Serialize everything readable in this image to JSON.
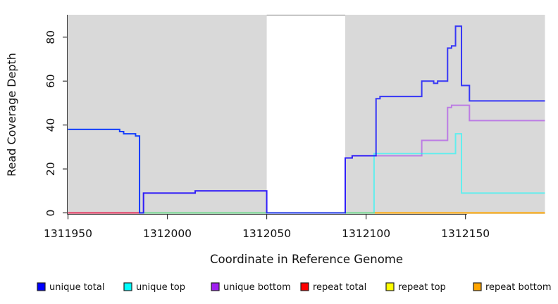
{
  "figure": {
    "background": "#ffffff",
    "panel_background": "#d9d9d9",
    "gap_border_color": "#999999",
    "axis_color": "#333333",
    "tick_label_color": "#111111"
  },
  "chart_data": {
    "type": "line",
    "subtype": "step",
    "title": "",
    "xlabel": "Coordinate in Reference Genome",
    "ylabel": "Read Coverage Depth",
    "xlim": [
      1311950,
      1312190
    ],
    "ylim": [
      0,
      90
    ],
    "xticks": [
      1311950,
      1312000,
      1312050,
      1312100,
      1312150
    ],
    "yticks": [
      0,
      20,
      40,
      60,
      80
    ],
    "grid": false,
    "legend_position": "bottom",
    "shaded_regions": [
      {
        "x0": 1311950,
        "x1": 1312050,
        "color": "#d9d9d9"
      },
      {
        "x0": 1312089.5,
        "x1": 1312190,
        "color": "#d9d9d9"
      }
    ],
    "series": [
      {
        "name": "unique total",
        "color": "#0000ff",
        "opacity": 0.75,
        "steps": [
          [
            1311950,
            38
          ],
          [
            1311976,
            37
          ],
          [
            1311978,
            36
          ],
          [
            1311984,
            35
          ],
          [
            1311986,
            0
          ],
          [
            1311988,
            9
          ],
          [
            1312014,
            10
          ],
          [
            1312050,
            0
          ],
          [
            1312089.5,
            25
          ],
          [
            1312093,
            26
          ],
          [
            1312105,
            52
          ],
          [
            1312107,
            53
          ],
          [
            1312128,
            60
          ],
          [
            1312134,
            59
          ],
          [
            1312136,
            60
          ],
          [
            1312141,
            75
          ],
          [
            1312143,
            76
          ],
          [
            1312145,
            85
          ],
          [
            1312148,
            58
          ],
          [
            1312152,
            51
          ],
          [
            1312190,
            51
          ]
        ]
      },
      {
        "name": "unique top",
        "color": "#00ffff",
        "opacity": 0.55,
        "steps": [
          [
            1311950,
            38
          ],
          [
            1311976,
            37
          ],
          [
            1311978,
            36
          ],
          [
            1311984,
            35
          ],
          [
            1311986,
            0
          ],
          [
            1312104,
            27
          ],
          [
            1312145,
            36
          ],
          [
            1312148,
            9
          ],
          [
            1312190,
            9
          ]
        ]
      },
      {
        "name": "unique bottom",
        "color": "#a020f0",
        "opacity": 0.5,
        "steps": [
          [
            1311950,
            0
          ],
          [
            1311988,
            9
          ],
          [
            1312014,
            10
          ],
          [
            1312050,
            0
          ],
          [
            1312089.5,
            25
          ],
          [
            1312093,
            26
          ],
          [
            1312128,
            33
          ],
          [
            1312141,
            48
          ],
          [
            1312143,
            49
          ],
          [
            1312152,
            42
          ],
          [
            1312190,
            42
          ]
        ]
      },
      {
        "name": "repeat total",
        "color": "#ff0000",
        "opacity": 0.6,
        "steps": [
          [
            1311950,
            0
          ],
          [
            1312190,
            0
          ]
        ]
      },
      {
        "name": "repeat top",
        "color": "#ffff00",
        "opacity": 0.6,
        "steps": [
          [
            1311988,
            0
          ],
          [
            1312190,
            0
          ]
        ]
      },
      {
        "name": "repeat bottom",
        "color": "#ffa500",
        "opacity": 0.85,
        "steps": [
          [
            1311988,
            0
          ],
          [
            1312190,
            0
          ]
        ]
      }
    ],
    "draw_order": [
      "unique bottom",
      "repeat total",
      "repeat top",
      "repeat bottom",
      "unique top",
      "unique total"
    ]
  }
}
